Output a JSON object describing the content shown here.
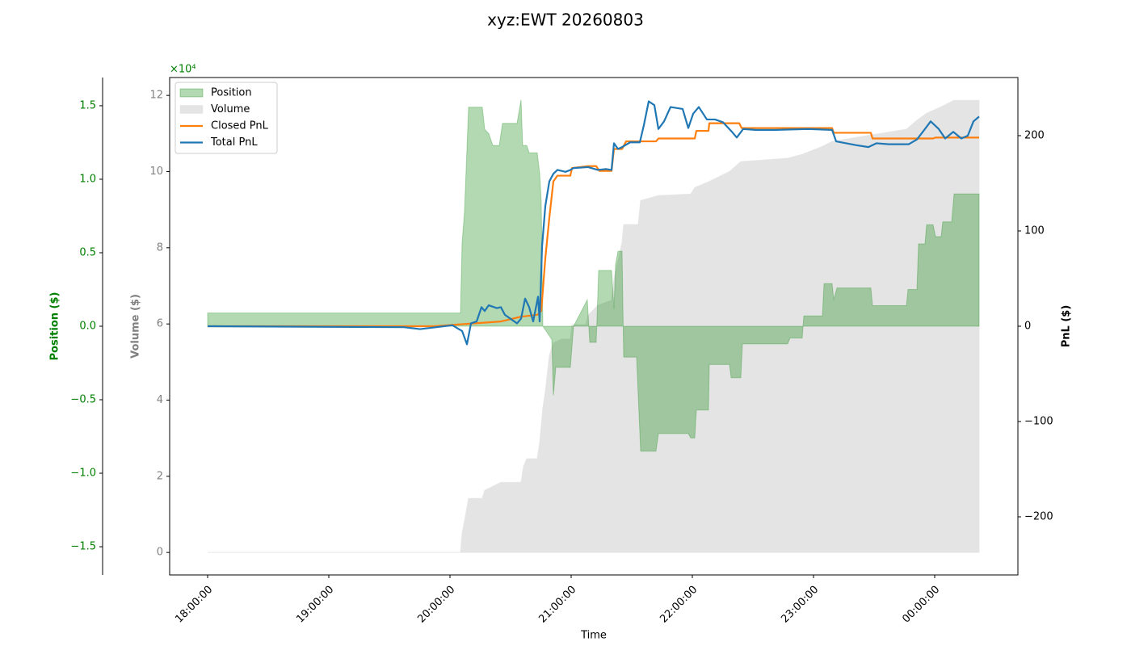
{
  "chart_data": {
    "type": "combo",
    "title": "xyz:EWT 20260803",
    "xlabel": "Time",
    "xlim": [
      -18.8,
      401.2
    ],
    "xticks": [
      {
        "value": 0,
        "label": "18:00:00"
      },
      {
        "value": 60,
        "label": "19:00:00"
      },
      {
        "value": 120,
        "label": "20:00:00"
      },
      {
        "value": 180,
        "label": "21:00:00"
      },
      {
        "value": 240,
        "label": "22:00:00"
      },
      {
        "value": 300,
        "label": "23:00:00"
      },
      {
        "value": 360,
        "label": "00:00:00"
      }
    ],
    "ylabel": "Volume ($)",
    "ycolor": "gray",
    "ylim": [
      -0.59,
      12.47
    ],
    "yticks": [
      0,
      2,
      4,
      6,
      8,
      10,
      12
    ],
    "y2label": "PnL ($)",
    "y2color": "black",
    "y2lim": [
      -261,
      261
    ],
    "y2ticks": [
      {
        "value": -200,
        "label": "−200"
      },
      {
        "value": -100,
        "label": "−100"
      },
      0,
      100,
      200
    ],
    "y3label": "Position ($)",
    "y3color": "green",
    "y3offset_label": "×10⁴",
    "y3lim": [
      -1.692,
      1.692
    ],
    "y3ticks": [
      {
        "value": -1.5,
        "label": "−1.5"
      },
      {
        "value": -1.0,
        "label": "−1.0"
      },
      {
        "value": -0.5,
        "label": "−0.5"
      },
      {
        "value": 0,
        "label": "0.0"
      },
      0.5,
      {
        "value": 1.0,
        "label": "1.0"
      },
      1.5
    ],
    "legend": "upper left",
    "series": [
      {
        "name": "Volume",
        "kind": "area",
        "axis": "y",
        "color": "#e4e4e4",
        "x": [
          0,
          125.2,
          126,
          127.2,
          129.2,
          136,
          137.2,
          139.2,
          145.2,
          155.2,
          156.4,
          158,
          163.2,
          164.4,
          166,
          167.2,
          169.2,
          171.2,
          175.2,
          179.6,
          180.4,
          187.2,
          188.4,
          193.2,
          200,
          201.2,
          205.2,
          206,
          213.2,
          214.4,
          223.2,
          239.2,
          241.2,
          248,
          258.4,
          264,
          287.2,
          294.4,
          304.4,
          309.2,
          328.4,
          346,
          352,
          356,
          363.2,
          369.6,
          382
        ],
        "values": [
          0,
          0,
          0.5,
          0.83,
          1.42,
          1.42,
          1.63,
          1.68,
          1.84,
          1.84,
          2.25,
          2.46,
          2.46,
          2.88,
          3.8,
          4.22,
          5.17,
          5.5,
          5.6,
          5.6,
          5.98,
          5.98,
          6.23,
          6.49,
          6.62,
          7.19,
          8.14,
          8.61,
          8.61,
          9.24,
          9.37,
          9.41,
          9.58,
          9.73,
          10.0,
          10.26,
          10.35,
          10.45,
          10.66,
          10.79,
          10.96,
          11.11,
          11.38,
          11.53,
          11.7,
          11.87,
          11.87
        ]
      },
      {
        "name": "Position",
        "kind": "area",
        "axis": "y3",
        "color": "#008000",
        "x": [
          0,
          125.2,
          126,
          127.2,
          129.2,
          136,
          137.2,
          139.2,
          141.2,
          144.4,
          146,
          153.2,
          155.2,
          156,
          158,
          159.2,
          163.2,
          164.4,
          165.2,
          166,
          170.4,
          171.2,
          172.4,
          179.6,
          181.2,
          188,
          189.2,
          192.4,
          193.6,
          200,
          201.2,
          202,
          203.2,
          205.2,
          206,
          212.4,
          214.4,
          222,
          223.2,
          238,
          239.2,
          241.2,
          242,
          248,
          248.4,
          258.4,
          259.2,
          264,
          264.8,
          287.2,
          288.4,
          294.4,
          295.2,
          304.4,
          305.2,
          309.2,
          310,
          311.6,
          328.4,
          329.2,
          346,
          346.8,
          351.2,
          352,
          355.2,
          356,
          359.2,
          360.4,
          363.2,
          364,
          368.4,
          369.6,
          382
        ],
        "values": [
          0.09,
          0.09,
          0.57,
          0.78,
          1.49,
          1.49,
          1.34,
          1.31,
          1.23,
          1.23,
          1.38,
          1.38,
          1.54,
          1.23,
          1.23,
          1.18,
          1.18,
          1.04,
          0.85,
          0,
          -0.09,
          -0.47,
          -0.28,
          -0.28,
          0,
          0.18,
          -0.11,
          -0.11,
          0.38,
          0.38,
          0.12,
          0.42,
          0.51,
          0.51,
          -0.21,
          -0.21,
          -0.85,
          -0.85,
          -0.73,
          -0.73,
          -0.76,
          -0.76,
          -0.57,
          -0.57,
          -0.26,
          -0.26,
          -0.35,
          -0.35,
          -0.12,
          -0.12,
          -0.08,
          -0.08,
          0.07,
          0.07,
          0.29,
          0.29,
          0.18,
          0.26,
          0.26,
          0.14,
          0.14,
          0.25,
          0.25,
          0.56,
          0.56,
          0.69,
          0.69,
          0.61,
          0.61,
          0.71,
          0.71,
          0.9,
          0.9
        ]
      },
      {
        "name": "Closed PnL",
        "kind": "line",
        "axis": "y2",
        "color": "#ff7f0e",
        "x": [
          0,
          112,
          145.2,
          155.2,
          163.2,
          165.2,
          167.2,
          169.2,
          171.2,
          173.2,
          179.6,
          180.4,
          188.4,
          192.4,
          194,
          200,
          201.2,
          205.2,
          207.2,
          222,
          223.2,
          241.2,
          242,
          248,
          248.4,
          263.2,
          264.4,
          309.2,
          310,
          328.4,
          329.2,
          359.2,
          360.4,
          382
        ],
        "values": [
          0,
          0,
          5,
          10,
          12,
          16,
          71,
          114,
          152,
          158,
          158,
          166,
          168,
          168,
          163,
          163,
          186,
          186,
          194,
          194,
          197,
          197,
          205,
          205,
          213,
          213,
          208,
          208,
          203,
          203,
          197,
          197,
          198,
          198
        ]
      },
      {
        "name": "Total PnL",
        "kind": "line",
        "axis": "y2",
        "color": "#1f77b4",
        "x": [
          0,
          97.2,
          105.2,
          121.2,
          126,
          128.4,
          130.4,
          133.2,
          135.6,
          137.2,
          139.2,
          143.2,
          145.2,
          147.2,
          153.2,
          155.2,
          157.2,
          159.2,
          161.2,
          163.6,
          164.4,
          165.6,
          167.2,
          169.2,
          171.2,
          173.2,
          177.2,
          179.6,
          181.2,
          188.4,
          193.2,
          197.2,
          200,
          201.2,
          203.2,
          205.2,
          209.2,
          214,
          216,
          218.4,
          221.2,
          223.2,
          226,
          229.2,
          235.2,
          238,
          240.4,
          243.2,
          247.2,
          251.2,
          255.2,
          259.2,
          262,
          265.2,
          271.2,
          281.2,
          297.2,
          309.2,
          311.2,
          321.2,
          327.2,
          331.2,
          337.2,
          347.2,
          351.2,
          355.2,
          358,
          362,
          365.2,
          369.2,
          373.2,
          376.4,
          379.2,
          382
        ],
        "values": [
          0,
          -1,
          -3,
          1,
          -5,
          -19,
          3,
          5,
          20,
          16,
          22,
          19,
          20,
          12,
          3,
          8,
          29,
          20,
          5,
          31,
          5,
          84,
          126,
          152,
          160,
          164,
          162,
          164,
          166,
          167,
          164,
          165,
          164,
          192,
          186,
          188,
          193,
          193,
          211,
          236,
          232,
          207,
          215,
          230,
          228,
          208,
          223,
          230,
          217,
          217,
          214,
          205,
          198,
          207,
          206,
          206,
          207,
          206,
          194,
          190,
          188,
          192,
          191,
          191,
          196,
          207,
          215,
          207,
          197,
          204,
          197,
          200,
          215,
          220
        ]
      }
    ]
  }
}
